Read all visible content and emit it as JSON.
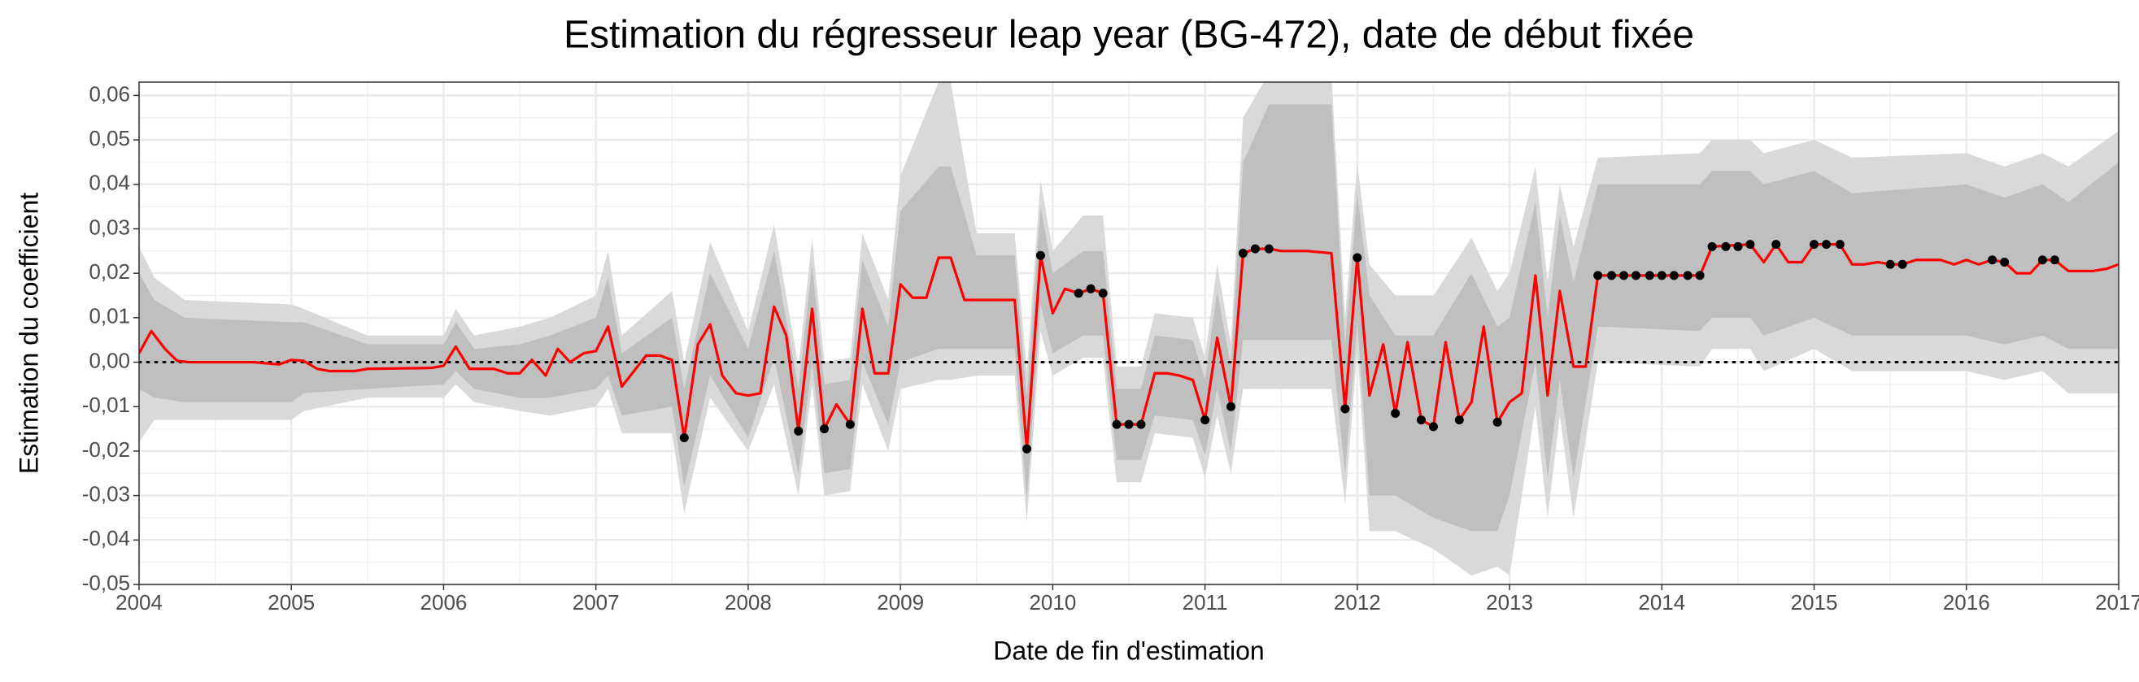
{
  "chart_data": {
    "type": "line",
    "title": "Estimation du régresseur leap year (BG-472), date de début fixée",
    "x_label": "Date de fin d'estimation",
    "y_label": "Estimation du coefficient",
    "xlim": [
      2004,
      2017
    ],
    "ylim": [
      -0.05,
      0.063
    ],
    "xticks": [
      2004,
      2005,
      2006,
      2007,
      2008,
      2009,
      2010,
      2011,
      2012,
      2013,
      2014,
      2015,
      2016,
      2017
    ],
    "yticks": [
      {
        "value": -0.05,
        "label": "-0,05"
      },
      {
        "value": -0.04,
        "label": "-0,04"
      },
      {
        "value": -0.03,
        "label": "-0,03"
      },
      {
        "value": -0.02,
        "label": "-0,02"
      },
      {
        "value": -0.01,
        "label": "-0,01"
      },
      {
        "value": 0,
        "label": "0,00"
      },
      {
        "value": 0.01,
        "label": "0,01"
      },
      {
        "value": 0.02,
        "label": "0,02"
      },
      {
        "value": 0.03,
        "label": "0,03"
      },
      {
        "value": 0.04,
        "label": "0,04"
      },
      {
        "value": 0.05,
        "label": "0,05"
      },
      {
        "value": 0.06,
        "label": "0,06"
      }
    ],
    "grid": true,
    "minor_grid": true,
    "reference_line": {
      "value": 0,
      "color": "#000000",
      "style": "dotted"
    },
    "bands": [
      {
        "color": "#d9d9d9",
        "x": [
          2004.0,
          2004.1,
          2004.3,
          2005.0,
          2005.08,
          2005.5,
          2006.0,
          2006.08,
          2006.2,
          2006.5,
          2006.7,
          2007.0,
          2007.08,
          2007.17,
          2007.5,
          2007.58,
          2007.75,
          2008.0,
          2008.17,
          2008.33,
          2008.42,
          2008.5,
          2008.67,
          2008.75,
          2008.92,
          2009.0,
          2009.25,
          2009.33,
          2009.5,
          2009.75,
          2009.83,
          2009.92,
          2010.0,
          2010.2,
          2010.33,
          2010.42,
          2010.58,
          2010.67,
          2010.92,
          2011.0,
          2011.08,
          2011.17,
          2011.25,
          2011.42,
          2011.83,
          2011.92,
          2012.0,
          2012.08,
          2012.25,
          2012.5,
          2012.75,
          2012.92,
          2013.0,
          2013.17,
          2013.25,
          2013.33,
          2013.42,
          2013.58,
          2014.25,
          2014.33,
          2014.58,
          2014.67,
          2015.0,
          2015.25,
          2016.0,
          2016.25,
          2016.5,
          2016.67,
          2017.0
        ],
        "lower": [
          -0.018,
          -0.013,
          -0.013,
          -0.013,
          -0.011,
          -0.008,
          -0.008,
          -0.005,
          -0.009,
          -0.011,
          -0.012,
          -0.01,
          -0.006,
          -0.016,
          -0.016,
          -0.034,
          -0.008,
          -0.02,
          -0.005,
          -0.03,
          -0.005,
          -0.03,
          -0.029,
          -0.005,
          -0.02,
          -0.006,
          -0.004,
          -0.004,
          -0.003,
          -0.003,
          -0.036,
          0.007,
          -0.003,
          0.001,
          0.001,
          -0.027,
          -0.027,
          -0.016,
          -0.017,
          -0.026,
          -0.012,
          -0.025,
          -0.006,
          -0.006,
          -0.006,
          -0.032,
          0.003,
          -0.038,
          -0.038,
          -0.042,
          -0.048,
          -0.046,
          -0.048,
          -0.01,
          -0.035,
          -0.012,
          -0.035,
          0.0,
          -0.001,
          0.003,
          0.003,
          -0.002,
          0.003,
          -0.002,
          -0.002,
          -0.004,
          -0.002,
          -0.007,
          -0.007
        ],
        "upper": [
          0.026,
          0.019,
          0.014,
          0.013,
          0.012,
          0.006,
          0.006,
          0.012,
          0.006,
          0.008,
          0.01,
          0.015,
          0.025,
          0.006,
          0.016,
          0.0,
          0.027,
          0.007,
          0.031,
          -0.001,
          0.028,
          0.0,
          0.001,
          0.029,
          0.014,
          0.042,
          0.063,
          0.063,
          0.029,
          0.029,
          -0.002,
          0.041,
          0.025,
          0.033,
          0.033,
          -0.001,
          -0.001,
          0.011,
          0.01,
          0.001,
          0.022,
          0.004,
          0.055,
          0.065,
          0.065,
          0.01,
          0.045,
          0.022,
          0.015,
          0.015,
          0.028,
          0.016,
          0.02,
          0.044,
          0.018,
          0.04,
          0.026,
          0.046,
          0.047,
          0.05,
          0.05,
          0.047,
          0.05,
          0.046,
          0.047,
          0.044,
          0.047,
          0.044,
          0.052
        ]
      },
      {
        "color": "#bfbfbf",
        "x": [
          2004.0,
          2004.1,
          2004.3,
          2005.0,
          2005.08,
          2005.5,
          2006.0,
          2006.08,
          2006.2,
          2006.5,
          2006.7,
          2007.0,
          2007.08,
          2007.17,
          2007.5,
          2007.58,
          2007.75,
          2008.0,
          2008.17,
          2008.33,
          2008.42,
          2008.5,
          2008.67,
          2008.75,
          2008.92,
          2009.0,
          2009.25,
          2009.33,
          2009.5,
          2009.75,
          2009.83,
          2009.92,
          2010.0,
          2010.2,
          2010.33,
          2010.42,
          2010.58,
          2010.67,
          2010.92,
          2011.0,
          2011.08,
          2011.17,
          2011.25,
          2011.42,
          2011.83,
          2011.92,
          2012.0,
          2012.08,
          2012.25,
          2012.5,
          2012.75,
          2012.92,
          2013.0,
          2013.17,
          2013.25,
          2013.33,
          2013.42,
          2013.58,
          2014.25,
          2014.33,
          2014.58,
          2014.67,
          2015.0,
          2015.25,
          2016.0,
          2016.25,
          2016.5,
          2016.67,
          2017.0
        ],
        "lower": [
          -0.006,
          -0.008,
          -0.009,
          -0.009,
          -0.007,
          -0.006,
          -0.005,
          -0.002,
          -0.006,
          -0.008,
          -0.008,
          -0.006,
          -0.003,
          -0.012,
          -0.01,
          -0.028,
          -0.003,
          -0.017,
          0.001,
          -0.025,
          0.0,
          -0.025,
          -0.024,
          0.0,
          -0.014,
          0.0,
          0.003,
          0.003,
          0.003,
          0.003,
          -0.031,
          0.013,
          0.002,
          0.006,
          0.006,
          -0.022,
          -0.022,
          -0.012,
          -0.013,
          -0.021,
          -0.006,
          -0.02,
          0.005,
          0.005,
          0.005,
          -0.025,
          0.009,
          -0.03,
          -0.03,
          -0.035,
          -0.038,
          -0.038,
          -0.03,
          0.0,
          -0.026,
          -0.004,
          -0.026,
          0.008,
          0.007,
          0.01,
          0.01,
          0.006,
          0.01,
          0.006,
          0.006,
          0.004,
          0.006,
          0.003,
          0.003
        ],
        "upper": [
          0.02,
          0.014,
          0.01,
          0.009,
          0.009,
          0.004,
          0.004,
          0.009,
          0.003,
          0.004,
          0.006,
          0.01,
          0.019,
          0.002,
          0.01,
          -0.006,
          0.02,
          0.003,
          0.025,
          -0.006,
          0.022,
          -0.005,
          -0.004,
          0.023,
          0.008,
          0.034,
          0.044,
          0.044,
          0.024,
          0.024,
          -0.008,
          0.035,
          0.02,
          0.025,
          0.025,
          -0.006,
          -0.006,
          0.006,
          0.005,
          -0.004,
          0.016,
          -0.001,
          0.045,
          0.058,
          0.058,
          0.004,
          0.038,
          0.015,
          0.006,
          0.006,
          0.02,
          0.008,
          0.01,
          0.036,
          0.01,
          0.033,
          0.018,
          0.04,
          0.04,
          0.043,
          0.043,
          0.04,
          0.043,
          0.038,
          0.04,
          0.037,
          0.04,
          0.036,
          0.045
        ]
      }
    ],
    "series": [
      {
        "color": "#ff0000",
        "x": [
          2004.0,
          2004.08,
          2004.17,
          2004.25,
          2004.33,
          2004.5,
          2004.75,
          2004.92,
          2005.0,
          2005.08,
          2005.17,
          2005.25,
          2005.42,
          2005.5,
          2005.92,
          2006.0,
          2006.08,
          2006.17,
          2006.33,
          2006.42,
          2006.5,
          2006.58,
          2006.67,
          2006.75,
          2006.83,
          2006.92,
          2007.0,
          2007.08,
          2007.17,
          2007.25,
          2007.33,
          2007.42,
          2007.5,
          2007.58,
          2007.67,
          2007.75,
          2007.83,
          2007.92,
          2008.0,
          2008.08,
          2008.17,
          2008.25,
          2008.33,
          2008.42,
          2008.5,
          2008.58,
          2008.67,
          2008.75,
          2008.83,
          2008.92,
          2009.0,
          2009.08,
          2009.17,
          2009.25,
          2009.33,
          2009.42,
          2009.75,
          2009.83,
          2009.92,
          2010.0,
          2010.08,
          2010.17,
          2010.25,
          2010.33,
          2010.42,
          2010.5,
          2010.58,
          2010.67,
          2010.75,
          2010.83,
          2010.92,
          2011.0,
          2011.08,
          2011.17,
          2011.25,
          2011.33,
          2011.42,
          2011.5,
          2011.67,
          2011.83,
          2011.92,
          2012.0,
          2012.08,
          2012.17,
          2012.25,
          2012.33,
          2012.42,
          2012.5,
          2012.58,
          2012.67,
          2012.75,
          2012.83,
          2012.92,
          2013.0,
          2013.08,
          2013.17,
          2013.25,
          2013.33,
          2013.42,
          2013.5,
          2013.58,
          2014.25,
          2014.33,
          2014.58,
          2014.67,
          2014.75,
          2014.83,
          2014.92,
          2015.0,
          2015.17,
          2015.25,
          2015.33,
          2015.42,
          2015.5,
          2015.58,
          2015.67,
          2015.83,
          2015.92,
          2016.0,
          2016.08,
          2016.17,
          2016.25,
          2016.33,
          2016.42,
          2016.5,
          2016.58,
          2016.67,
          2016.83,
          2016.92,
          2017.0
        ],
        "values": [
          0.002,
          0.007,
          0.003,
          0.0003,
          0,
          0,
          0,
          -0.0005,
          0.0005,
          0.0003,
          -0.0015,
          -0.002,
          -0.002,
          -0.0015,
          -0.0013,
          -0.0008,
          0.0035,
          -0.0015,
          -0.0015,
          -0.0025,
          -0.0025,
          0.0005,
          -0.003,
          0.003,
          0,
          0.002,
          0.0025,
          0.008,
          -0.0055,
          -0.002,
          0.0015,
          0.0015,
          0.0005,
          -0.017,
          0.004,
          0.0085,
          -0.003,
          -0.007,
          -0.0075,
          -0.007,
          0.0125,
          0.006,
          -0.0155,
          0.012,
          -0.015,
          -0.0095,
          -0.014,
          0.012,
          -0.0025,
          -0.0025,
          0.0175,
          0.0145,
          0.0145,
          0.0235,
          0.0235,
          0.014,
          0.014,
          -0.0195,
          0.024,
          0.011,
          0.0165,
          0.0155,
          0.0165,
          0.0155,
          -0.014,
          -0.014,
          -0.014,
          -0.0025,
          -0.0025,
          -0.003,
          -0.004,
          -0.013,
          0.0055,
          -0.01,
          0.0245,
          0.0255,
          0.0255,
          0.025,
          0.025,
          0.0245,
          -0.0105,
          0.0235,
          -0.0075,
          0.004,
          -0.0115,
          0.0045,
          -0.013,
          -0.0145,
          0.0045,
          -0.013,
          -0.009,
          0.008,
          -0.0135,
          -0.009,
          -0.007,
          0.0195,
          -0.0075,
          0.016,
          -0.001,
          -0.001,
          0.0195,
          0.0195,
          0.026,
          0.0265,
          0.0225,
          0.0265,
          0.0225,
          0.0225,
          0.0265,
          0.0265,
          0.022,
          0.022,
          0.0225,
          0.022,
          0.022,
          0.023,
          0.023,
          0.022,
          0.023,
          0.022,
          0.023,
          0.0225,
          0.02,
          0.02,
          0.023,
          0.023,
          0.0205,
          0.0205,
          0.021,
          0.022
        ]
      }
    ],
    "points": {
      "color": "#000000",
      "x": [
        2007.58,
        2008.33,
        2008.5,
        2008.67,
        2009.83,
        2009.92,
        2010.17,
        2010.25,
        2010.33,
        2010.42,
        2010.5,
        2010.58,
        2011.0,
        2011.17,
        2011.25,
        2011.33,
        2011.42,
        2011.92,
        2012.0,
        2012.25,
        2012.42,
        2012.5,
        2012.67,
        2012.92,
        2013.58,
        2013.67,
        2013.75,
        2013.83,
        2013.92,
        2014.0,
        2014.08,
        2014.17,
        2014.25,
        2014.33,
        2014.42,
        2014.5,
        2014.58,
        2014.75,
        2015.0,
        2015.08,
        2015.17,
        2015.5,
        2015.58,
        2016.17,
        2016.25,
        2016.5,
        2016.58
      ],
      "values": [
        -0.017,
        -0.0155,
        -0.015,
        -0.014,
        -0.0195,
        0.024,
        0.0155,
        0.0165,
        0.0155,
        -0.014,
        -0.014,
        -0.014,
        -0.013,
        -0.01,
        0.0245,
        0.0255,
        0.0255,
        -0.0105,
        0.0235,
        -0.0115,
        -0.013,
        -0.0145,
        -0.013,
        -0.0135,
        0.0195,
        0.0195,
        0.0195,
        0.0195,
        0.0195,
        0.0195,
        0.0195,
        0.0195,
        0.0195,
        0.026,
        0.026,
        0.026,
        0.0265,
        0.0265,
        0.0265,
        0.0265,
        0.0265,
        0.022,
        0.022,
        0.023,
        0.0225,
        0.023,
        0.023
      ]
    }
  }
}
